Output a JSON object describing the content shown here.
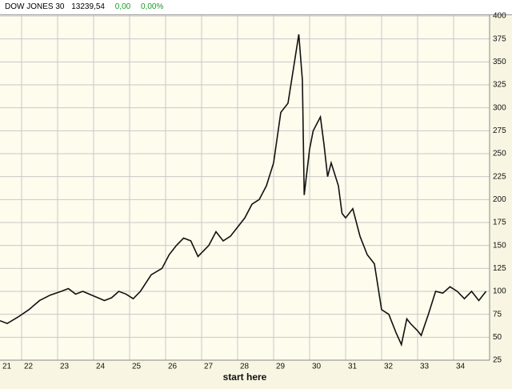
{
  "header": {
    "name": "DOW JONES 30",
    "value": "13239,54",
    "change": "0,00",
    "change_pct": "0,00%"
  },
  "chart_data": {
    "type": "line",
    "x_label": "start here",
    "x": [
      21.4,
      21.6,
      21.9,
      22.2,
      22.5,
      22.8,
      23.1,
      23.3,
      23.5,
      23.7,
      24.0,
      24.3,
      24.5,
      24.7,
      24.9,
      25.1,
      25.3,
      25.6,
      25.9,
      26.1,
      26.3,
      26.5,
      26.7,
      26.9,
      27.2,
      27.4,
      27.6,
      27.8,
      28.0,
      28.2,
      28.4,
      28.6,
      28.8,
      29.0,
      29.2,
      29.4,
      29.6,
      29.7,
      29.8,
      29.85,
      30.0,
      30.1,
      30.3,
      30.4,
      30.5,
      30.6,
      30.8,
      30.9,
      31.0,
      31.2,
      31.4,
      31.6,
      31.8,
      31.9,
      32.0,
      32.2,
      32.4,
      32.55,
      32.7,
      32.8,
      33.0,
      33.1,
      33.3,
      33.5,
      33.7,
      33.9,
      34.1,
      34.3,
      34.5,
      34.7,
      34.9
    ],
    "series": [
      {
        "name": "DOW JONES 30",
        "color": "#111111",
        "values": [
          68,
          65,
          72,
          80,
          90,
          96,
          100,
          103,
          97,
          100,
          95,
          90,
          93,
          100,
          97,
          92,
          100,
          118,
          125,
          140,
          150,
          158,
          155,
          138,
          150,
          165,
          155,
          160,
          170,
          180,
          195,
          200,
          215,
          240,
          295,
          305,
          355,
          380,
          330,
          205,
          255,
          275,
          290,
          260,
          225,
          240,
          215,
          185,
          180,
          190,
          160,
          140,
          130,
          105,
          80,
          75,
          55,
          42,
          70,
          65,
          57,
          52,
          75,
          100,
          98,
          105,
          100,
          92,
          100,
          90,
          100
        ]
      }
    ],
    "xlim": [
      21.4,
      35
    ],
    "xticks": [
      {
        "value": 21.4,
        "label": "21"
      },
      22,
      23,
      24,
      25,
      26,
      27,
      28,
      29,
      30,
      31,
      32,
      33,
      34
    ],
    "ylim": [
      25,
      400
    ],
    "yticks": [
      25,
      50,
      75,
      100,
      125,
      150,
      175,
      200,
      225,
      250,
      275,
      300,
      325,
      350,
      375,
      400
    ],
    "grid": true
  }
}
